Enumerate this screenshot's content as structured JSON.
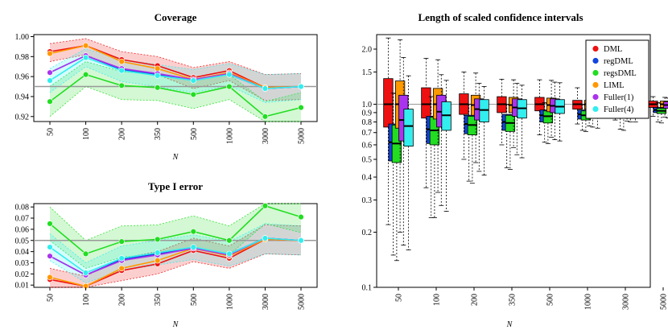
{
  "chart_data": [
    {
      "type": "line",
      "title": "Coverage",
      "xlabel": "N",
      "ylabel": "",
      "x": [
        "50",
        "100",
        "200",
        "350",
        "500",
        "1000",
        "3000",
        "5000"
      ],
      "ylim": [
        0.915,
        1.002
      ],
      "yticks": [
        "0.92",
        "0.94",
        "0.96",
        "0.98",
        "1.00"
      ],
      "reference_line": 0.95,
      "series": [
        {
          "name": "DML",
          "color": "#ee1111",
          "values": [
            0.985,
            0.991,
            0.977,
            0.971,
            0.959,
            0.966,
            0.949,
            0.95
          ]
        },
        {
          "name": "regDML",
          "color": "#1144dd",
          "values": [
            0.964,
            0.981,
            0.967,
            0.962,
            0.957,
            0.962,
            0.948,
            0.95
          ]
        },
        {
          "name": "regsDML",
          "color": "#22dd22",
          "values": [
            0.935,
            0.962,
            0.951,
            0.949,
            0.942,
            0.95,
            0.92,
            0.929
          ]
        },
        {
          "name": "LIML",
          "color": "#ff9900",
          "values": [
            0.983,
            0.991,
            0.975,
            0.968,
            0.957,
            0.964,
            0.949,
            0.95
          ]
        },
        {
          "name": "Fuller(1)",
          "color": "#aa33ee",
          "values": [
            0.964,
            0.981,
            0.968,
            0.963,
            0.957,
            0.963,
            0.948,
            0.95
          ]
        },
        {
          "name": "Fuller(4)",
          "color": "#33eeee",
          "values": [
            0.956,
            0.979,
            0.966,
            0.961,
            0.956,
            0.962,
            0.948,
            0.95
          ]
        }
      ],
      "bands": [
        {
          "color": "#ee1111",
          "lower": [
            0.975,
            0.982,
            0.966,
            0.962,
            0.948,
            0.956,
            0.936,
            0.937
          ],
          "upper": [
            0.993,
            0.998,
            0.985,
            0.98,
            0.969,
            0.975,
            0.962,
            0.963
          ]
        },
        {
          "color": "#22dd22",
          "lower": [
            0.92,
            0.95,
            0.937,
            0.936,
            0.928,
            0.937,
            0.905,
            0.914
          ],
          "upper": [
            0.95,
            0.975,
            0.965,
            0.962,
            0.957,
            0.962,
            0.935,
            0.944
          ]
        },
        {
          "color": "#33eeee",
          "lower": [
            0.944,
            0.97,
            0.955,
            0.95,
            0.944,
            0.951,
            0.934,
            0.937
          ],
          "upper": [
            0.968,
            0.988,
            0.977,
            0.972,
            0.967,
            0.973,
            0.962,
            0.963
          ]
        }
      ]
    },
    {
      "type": "line",
      "title": "Type I error",
      "xlabel": "N",
      "ylabel": "",
      "x": [
        "50",
        "100",
        "200",
        "350",
        "500",
        "1000",
        "3000",
        "5000"
      ],
      "ylim": [
        0.008,
        0.083
      ],
      "yticks": [
        "0.01",
        "0.02",
        "0.03",
        "0.04",
        "0.05",
        "0.06",
        "0.07",
        "0.08"
      ],
      "reference_line": 0.05,
      "series": [
        {
          "name": "DML",
          "color": "#ee1111",
          "values": [
            0.015,
            0.009,
            0.023,
            0.029,
            0.041,
            0.034,
            0.051,
            0.05
          ]
        },
        {
          "name": "regDML",
          "color": "#1144dd",
          "values": [
            0.036,
            0.019,
            0.033,
            0.038,
            0.043,
            0.038,
            0.052,
            0.05
          ]
        },
        {
          "name": "regsDML",
          "color": "#22dd22",
          "values": [
            0.065,
            0.038,
            0.049,
            0.051,
            0.058,
            0.05,
            0.081,
            0.071
          ]
        },
        {
          "name": "LIML",
          "color": "#ff9900",
          "values": [
            0.017,
            0.009,
            0.025,
            0.032,
            0.043,
            0.036,
            0.051,
            0.05
          ]
        },
        {
          "name": "Fuller(1)",
          "color": "#aa33ee",
          "values": [
            0.036,
            0.019,
            0.032,
            0.037,
            0.043,
            0.037,
            0.052,
            0.05
          ]
        },
        {
          "name": "Fuller(4)",
          "color": "#33eeee",
          "values": [
            0.044,
            0.021,
            0.034,
            0.039,
            0.044,
            0.038,
            0.052,
            0.05
          ]
        }
      ],
      "bands": [
        {
          "color": "#ee1111",
          "lower": [
            0.007,
            0.002,
            0.014,
            0.02,
            0.031,
            0.025,
            0.038,
            0.037
          ],
          "upper": [
            0.025,
            0.018,
            0.034,
            0.04,
            0.052,
            0.045,
            0.064,
            0.063
          ]
        },
        {
          "color": "#22dd22",
          "lower": [
            0.05,
            0.025,
            0.035,
            0.038,
            0.043,
            0.037,
            0.065,
            0.057
          ],
          "upper": [
            0.08,
            0.05,
            0.063,
            0.064,
            0.072,
            0.063,
            0.095,
            0.086
          ]
        },
        {
          "color": "#33eeee",
          "lower": [
            0.032,
            0.012,
            0.023,
            0.028,
            0.033,
            0.027,
            0.038,
            0.037
          ],
          "upper": [
            0.056,
            0.03,
            0.045,
            0.05,
            0.055,
            0.049,
            0.065,
            0.063
          ]
        }
      ]
    },
    {
      "type": "box",
      "title": "Length of scaled confidence intervals",
      "xlabel": "N",
      "ylabel": "",
      "x": [
        "50",
        "100",
        "200",
        "350",
        "500",
        "1000",
        "3000",
        "5000"
      ],
      "scale": "log",
      "ylim": [
        0.1,
        2.4
      ],
      "yticks": [
        "0.1",
        "0.2",
        "0.3",
        "0.4",
        "0.5",
        "0.6",
        "0.7",
        "0.8",
        "0.9",
        "1.0",
        "1.5",
        "2.0"
      ],
      "reference_line": 1.0,
      "legend": {
        "position": "top-right",
        "entries": [
          "DML",
          "regDML",
          "regsDML",
          "LIML",
          "Fuller(1)",
          "Fuller(4)"
        ]
      },
      "series": [
        {
          "name": "DML",
          "color": "#ee1111",
          "boxes": [
            [
              0.22,
              0.75,
              1.0,
              1.38,
              2.3
            ],
            [
              0.35,
              0.84,
              1.0,
              1.23,
              1.78
            ],
            [
              0.5,
              0.88,
              1.0,
              1.14,
              1.5
            ],
            [
              0.6,
              0.9,
              1.0,
              1.1,
              1.37
            ],
            [
              0.68,
              0.92,
              1.0,
              1.09,
              1.36
            ],
            [
              0.78,
              0.94,
              1.0,
              1.05,
              1.23
            ],
            [
              0.82,
              0.95,
              1.0,
              1.05,
              1.14
            ],
            [
              0.86,
              0.96,
              1.0,
              1.04,
              1.1
            ]
          ]
        },
        {
          "name": "regDML",
          "color": "#1144dd",
          "boxes": [
            [
              0.15,
              0.49,
              0.62,
              0.78,
              1.15
            ],
            [
              0.24,
              0.61,
              0.73,
              0.86,
              1.1
            ],
            [
              0.38,
              0.69,
              0.78,
              0.87,
              1.0
            ],
            [
              0.45,
              0.72,
              0.8,
              0.88,
              1.0
            ],
            [
              0.62,
              0.8,
              0.87,
              0.93,
              1.02
            ],
            [
              0.72,
              0.83,
              0.88,
              0.93,
              1.0
            ],
            [
              0.73,
              0.87,
              0.91,
              0.95,
              1.02
            ],
            [
              0.8,
              0.9,
              0.93,
              0.96,
              1.02
            ]
          ]
        },
        {
          "name": "regsDML",
          "color": "#22dd22",
          "boxes": [
            [
              0.14,
              0.48,
              0.61,
              0.77,
              1.14
            ],
            [
              0.24,
              0.6,
              0.72,
              0.85,
              1.1
            ],
            [
              0.37,
              0.68,
              0.77,
              0.86,
              1.0
            ],
            [
              0.44,
              0.71,
              0.79,
              0.87,
              0.99
            ],
            [
              0.61,
              0.79,
              0.86,
              0.92,
              1.01
            ],
            [
              0.71,
              0.82,
              0.87,
              0.92,
              0.99
            ],
            [
              0.72,
              0.86,
              0.9,
              0.94,
              1.01
            ],
            [
              0.79,
              0.89,
              0.92,
              0.95,
              1.01
            ]
          ]
        },
        {
          "name": "LIML",
          "color": "#ff9900",
          "boxes": [
            [
              0.2,
              0.74,
              1.0,
              1.34,
              2.25
            ],
            [
              0.33,
              0.83,
              1.0,
              1.22,
              1.75
            ],
            [
              0.48,
              0.87,
              0.99,
              1.12,
              1.48
            ],
            [
              0.58,
              0.9,
              0.99,
              1.09,
              1.36
            ],
            [
              0.66,
              0.91,
              0.99,
              1.08,
              1.35
            ],
            [
              0.76,
              0.94,
              1.0,
              1.05,
              1.22
            ],
            [
              0.81,
              0.95,
              1.0,
              1.04,
              1.13
            ],
            [
              0.85,
              0.96,
              1.0,
              1.04,
              1.09
            ]
          ]
        },
        {
          "name": "Fuller(1)",
          "color": "#aa33ee",
          "boxes": [
            [
              0.17,
              0.63,
              0.82,
              1.12,
              1.8
            ],
            [
              0.28,
              0.75,
              0.91,
              1.12,
              1.45
            ],
            [
              0.43,
              0.82,
              0.94,
              1.07,
              1.3
            ],
            [
              0.53,
              0.86,
              0.96,
              1.07,
              1.3
            ],
            [
              0.64,
              0.9,
              0.98,
              1.07,
              1.32
            ],
            [
              0.75,
              0.93,
              0.99,
              1.04,
              1.2
            ],
            [
              0.8,
              0.94,
              0.99,
              1.04,
              1.12
            ],
            [
              0.84,
              0.95,
              0.99,
              1.03,
              1.08
            ]
          ]
        },
        {
          "name": "Fuller(4)",
          "color": "#33eeee",
          "boxes": [
            [
              0.16,
              0.59,
              0.76,
              0.94,
              1.43
            ],
            [
              0.26,
              0.72,
              0.87,
              1.03,
              1.35
            ],
            [
              0.41,
              0.8,
              0.93,
              1.06,
              1.25
            ],
            [
              0.51,
              0.84,
              0.95,
              1.06,
              1.27
            ],
            [
              0.63,
              0.89,
              0.97,
              1.06,
              1.31
            ],
            [
              0.74,
              0.92,
              0.98,
              1.04,
              1.19
            ],
            [
              0.8,
              0.94,
              0.99,
              1.04,
              1.12
            ],
            [
              0.84,
              0.95,
              0.99,
              1.03,
              1.08
            ]
          ]
        }
      ]
    }
  ]
}
